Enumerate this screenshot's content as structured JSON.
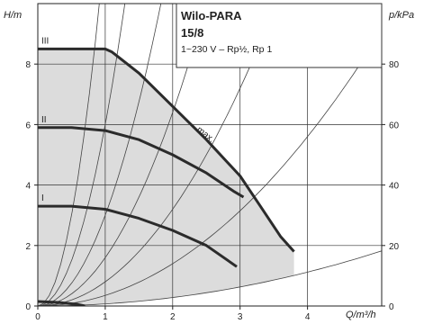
{
  "chart_data": {
    "type": "line",
    "title": "Wilo-PARA",
    "model": "15/8",
    "subtitle": "1~230 V – Rp½, Rp 1",
    "ylabel": "H/m",
    "ylabel_right": "p/kPa",
    "xlabel": "Q/m³/h",
    "xlim": [
      0,
      5.1
    ],
    "ylim": [
      0,
      10
    ],
    "ylim_right": [
      0,
      100
    ],
    "xticks": [
      "0",
      "1",
      "2",
      "3",
      "4"
    ],
    "yticks": [
      "0",
      "2",
      "4",
      "6",
      "8"
    ],
    "yticks_right": [
      "0",
      "20",
      "40",
      "60",
      "80"
    ],
    "grid": true,
    "shaded_operating_area": true,
    "series": [
      {
        "name": "III",
        "x": [
          0,
          1.0,
          1.1,
          1.5,
          2.0,
          2.5,
          3.0,
          3.3,
          3.6,
          3.8
        ],
        "y": [
          8.5,
          8.5,
          8.4,
          7.7,
          6.6,
          5.5,
          4.3,
          3.3,
          2.3,
          1.8
        ]
      },
      {
        "name": "II",
        "x": [
          0,
          0.5,
          1.0,
          1.5,
          2.0,
          2.5,
          2.9,
          3.05
        ],
        "y": [
          5.9,
          5.9,
          5.8,
          5.5,
          5.0,
          4.4,
          3.8,
          3.6
        ]
      },
      {
        "name": "I",
        "x": [
          0,
          0.5,
          1.0,
          1.5,
          2.0,
          2.5,
          2.95
        ],
        "y": [
          3.3,
          3.3,
          3.2,
          2.9,
          2.5,
          2.0,
          1.3
        ]
      },
      {
        "name": "",
        "x": [
          0,
          0.3,
          0.6,
          0.7
        ],
        "y": [
          0.15,
          0.12,
          0.05,
          0.0
        ]
      }
    ],
    "annotations": [
      {
        "text": "max.",
        "x": 2.35,
        "y": 5.8
      }
    ],
    "system_curves_k": [
      12.0,
      6.0,
      3.0,
      1.6,
      0.8,
      0.35,
      0.07
    ],
    "colors": {
      "curve": "#2b2b2b",
      "area": "#dcdcdc",
      "grid": "#333333",
      "system": "#444444"
    }
  }
}
